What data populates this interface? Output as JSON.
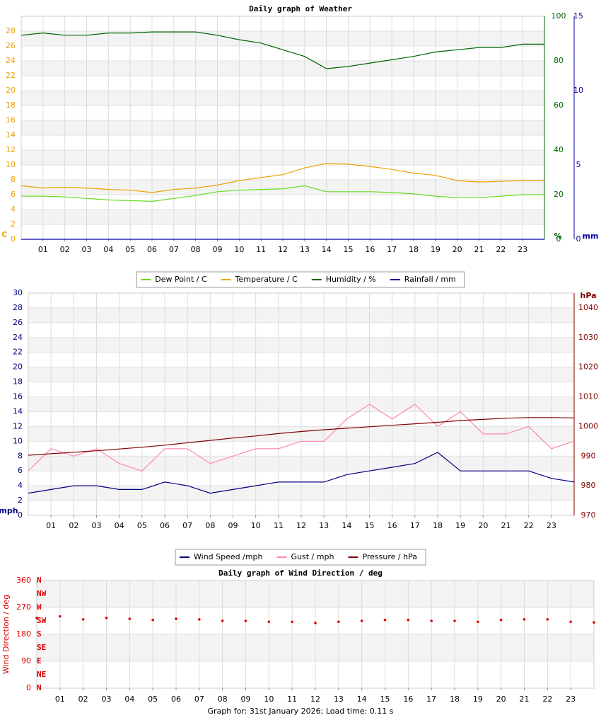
{
  "chart_data": [
    {
      "type": "line",
      "title": "Daily graph of Weather",
      "x": [
        0,
        1,
        2,
        3,
        4,
        5,
        6,
        7,
        8,
        9,
        10,
        11,
        12,
        13,
        14,
        15,
        16,
        17,
        18,
        19,
        20,
        21,
        22,
        23,
        24
      ],
      "xlim": [
        0,
        24
      ],
      "xticks": [
        {
          "value": 1,
          "label": "01"
        },
        {
          "value": 2,
          "label": "02"
        },
        {
          "value": 3,
          "label": "03"
        },
        {
          "value": 4,
          "label": "04"
        },
        {
          "value": 5,
          "label": "05"
        },
        {
          "value": 6,
          "label": "06"
        },
        {
          "value": 7,
          "label": "07"
        },
        {
          "value": 8,
          "label": "08"
        },
        {
          "value": 9,
          "label": "09"
        },
        10,
        11,
        12,
        13,
        14,
        15,
        16,
        17,
        18,
        19,
        20,
        21,
        22,
        23
      ],
      "ylim": [
        0,
        30
      ],
      "yticks": [
        0,
        2,
        4,
        6,
        8,
        10,
        12,
        14,
        16,
        18,
        20,
        22,
        24,
        26,
        28
      ],
      "y_unit": "C",
      "ytick_color": "#f0a000",
      "y2lim": [
        0,
        100
      ],
      "y2ticks": [
        0,
        20,
        40,
        60,
        80,
        100
      ],
      "y2_unit": "%",
      "y2tick_color": "#006400",
      "y3lim": [
        0,
        15
      ],
      "y3ticks": [
        0,
        5,
        10,
        15
      ],
      "y3_unit": "mm",
      "y3tick_color": "#0000a0",
      "grid": true,
      "series": [
        {
          "name": "Dew Point / C",
          "color": "#66dd22",
          "values": [
            5.8,
            5.8,
            5.7,
            5.5,
            5.3,
            5.2,
            5.1,
            5.5,
            5.9,
            6.4,
            6.6,
            6.7,
            6.8,
            7.2,
            6.4,
            6.4,
            6.4,
            6.3,
            6.1,
            5.8,
            5.6,
            5.6,
            5.8,
            6.0,
            6.0
          ]
        },
        {
          "name": "Temperature / C",
          "color": "#f0a000",
          "values": [
            7.2,
            6.9,
            7.0,
            6.9,
            6.7,
            6.6,
            6.3,
            6.7,
            6.9,
            7.3,
            7.9,
            8.3,
            8.7,
            9.6,
            10.2,
            10.1,
            9.8,
            9.4,
            8.9,
            8.6,
            7.9,
            7.7,
            7.8,
            7.9,
            7.9
          ]
        },
        {
          "name": "Humidity / %",
          "color": "#006400",
          "axis": "y2",
          "values": [
            91.5,
            92.5,
            91.5,
            91.5,
            92.5,
            92.5,
            93,
            93,
            93,
            91.5,
            89.5,
            88,
            85,
            82,
            76.5,
            77.5,
            79,
            80.5,
            82,
            84,
            85,
            86,
            86,
            87.5,
            87.5
          ]
        },
        {
          "name": "Rainfall / mm",
          "color": "#0000a0",
          "axis": "y3",
          "values": [
            0,
            0,
            0,
            0,
            0,
            0,
            0,
            0,
            0,
            0,
            0,
            0,
            0,
            0,
            0,
            0,
            0,
            0,
            0,
            0,
            0,
            0,
            0,
            0,
            0
          ]
        }
      ]
    },
    {
      "type": "line",
      "x": [
        0,
        1,
        2,
        3,
        4,
        5,
        6,
        7,
        8,
        9,
        10,
        11,
        12,
        13,
        14,
        15,
        16,
        17,
        18,
        19,
        20,
        21,
        22,
        23,
        24
      ],
      "xlim": [
        0,
        24
      ],
      "xticks": [
        {
          "value": 1,
          "label": "01"
        },
        {
          "value": 2,
          "label": "02"
        },
        {
          "value": 3,
          "label": "03"
        },
        {
          "value": 4,
          "label": "04"
        },
        {
          "value": 5,
          "label": "05"
        },
        {
          "value": 6,
          "label": "06"
        },
        {
          "value": 7,
          "label": "07"
        },
        {
          "value": 8,
          "label": "08"
        },
        {
          "value": 9,
          "label": "09"
        },
        10,
        11,
        12,
        13,
        14,
        15,
        16,
        17,
        18,
        19,
        20,
        21,
        22,
        23
      ],
      "ylim": [
        0,
        30
      ],
      "yticks": [
        0,
        2,
        4,
        6,
        8,
        10,
        12,
        14,
        16,
        18,
        20,
        22,
        24,
        26,
        28,
        30
      ],
      "y_unit": "mph",
      "ytick_color": "#000080",
      "y2lim": [
        970,
        1045
      ],
      "y2ticks": [
        970,
        980,
        990,
        1000,
        1010,
        1020,
        1030,
        1040
      ],
      "y2_unit": "hPa",
      "y2tick_color": "#800000",
      "grid": true,
      "series": [
        {
          "name": "Wind Speed /mph",
          "color": "#000080",
          "values": [
            3,
            3.5,
            4,
            4,
            3.5,
            3.5,
            4.5,
            4,
            3,
            3.5,
            4,
            4.5,
            4.5,
            4.5,
            5.5,
            6,
            6.5,
            7,
            8.5,
            6,
            6,
            6,
            6,
            5,
            4.5
          ]
        },
        {
          "name": "Gust / mph",
          "color": "#ff88aa",
          "values": [
            6,
            9,
            8,
            9,
            7,
            6,
            9,
            9,
            7,
            8,
            9,
            9,
            10,
            10,
            13,
            15,
            13,
            15,
            12,
            14,
            11,
            11,
            12,
            9,
            10
          ]
        },
        {
          "name": "Pressure / hPa",
          "color": "#800000",
          "axis": "y2",
          "values": [
            990.3,
            990.8,
            991.3,
            991.8,
            992.4,
            993,
            993.7,
            994.5,
            995.3,
            996.1,
            996.8,
            997.6,
            998.3,
            998.9,
            999.4,
            999.9,
            1000.4,
            1000.9,
            1001.4,
            1002.0,
            1002.4,
            1002.8,
            1003.0,
            1003.0,
            1002.9
          ]
        }
      ]
    },
    {
      "type": "scatter",
      "title": "Daily graph of Wind Direction / deg",
      "ylabel": "Wind Direction / deg",
      "x": [
        0,
        1,
        2,
        3,
        4,
        5,
        6,
        7,
        8,
        9,
        10,
        11,
        12,
        13,
        14,
        15,
        16,
        17,
        18,
        19,
        20,
        21,
        22,
        23,
        24
      ],
      "xlim": [
        0,
        24
      ],
      "xticks": [
        {
          "value": 1,
          "label": "01"
        },
        {
          "value": 2,
          "label": "02"
        },
        {
          "value": 3,
          "label": "03"
        },
        {
          "value": 4,
          "label": "04"
        },
        {
          "value": 5,
          "label": "05"
        },
        {
          "value": 6,
          "label": "06"
        },
        {
          "value": 7,
          "label": "07"
        },
        {
          "value": 8,
          "label": "08"
        },
        {
          "value": 9,
          "label": "09"
        },
        10,
        11,
        12,
        13,
        14,
        15,
        16,
        17,
        18,
        19,
        20,
        21,
        22,
        23
      ],
      "ylim": [
        0,
        360
      ],
      "yticks": [
        0,
        90,
        180,
        270,
        360
      ],
      "ytick_color": "#e00000",
      "compass_labels": [
        "N",
        "NW",
        "W",
        "SW",
        "S",
        "SE",
        "E",
        "NE",
        "N"
      ],
      "grid": true,
      "series": [
        {
          "color": "#e00000",
          "values": [
            235,
            240,
            230,
            235,
            232,
            228,
            232,
            230,
            225,
            225,
            222,
            222,
            218,
            222,
            225,
            228,
            228,
            225,
            225,
            222,
            228,
            230,
            230,
            222,
            220
          ]
        }
      ]
    }
  ],
  "footer": "Graph for: 31st January 2026; Load time: 0.11 s"
}
